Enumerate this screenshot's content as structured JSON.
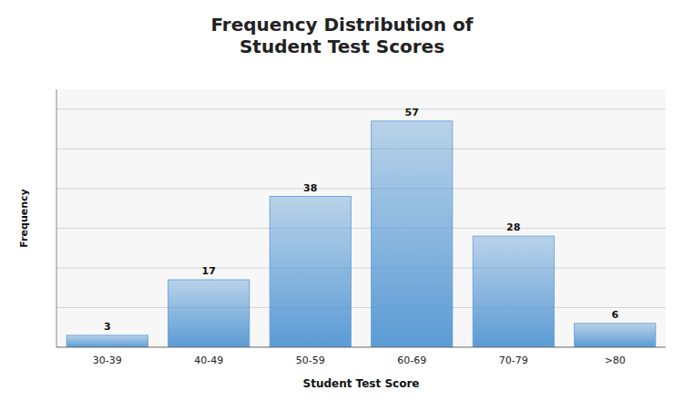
{
  "chart_data": {
    "type": "bar",
    "title": "Frequency Distribution of\nStudent Test Scores",
    "xlabel": "Student Test Score",
    "ylabel": "Frequency",
    "categories": [
      "30-39",
      "40-49",
      "50-59",
      "60-69",
      "70-79",
      ">80"
    ],
    "values": [
      3,
      17,
      38,
      57,
      28,
      6
    ],
    "color": "#5B9BD5",
    "ylim": [
      0,
      65
    ],
    "yticks": [
      10,
      20,
      30,
      40,
      50,
      60
    ],
    "grid": true,
    "data_labels": true,
    "tick_labels": "x"
  }
}
